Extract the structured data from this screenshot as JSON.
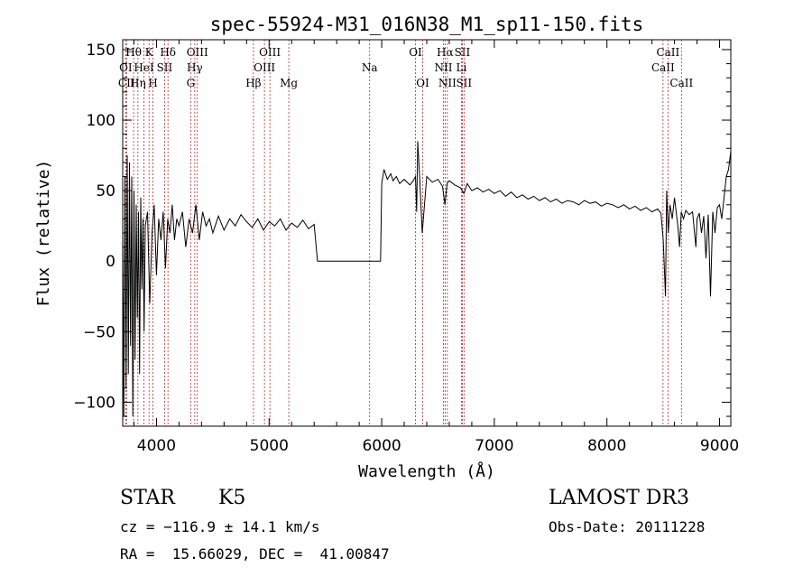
{
  "chart_data": {
    "type": "line",
    "title": "spec-55924-M31_016N38_M1_sp11-150.fits",
    "xlabel": "Wavelength (Å)",
    "ylabel": "Flux (relative)",
    "xlim": [
      3700,
      9100
    ],
    "ylim": [
      -117,
      157
    ],
    "x_ticks": [
      4000,
      5000,
      6000,
      7000,
      8000,
      9000
    ],
    "x_tick_labels": [
      "4000",
      "5000",
      "6000",
      "7000",
      "8000",
      "9000"
    ],
    "y_ticks": [
      -100,
      -50,
      0,
      50,
      100,
      150
    ],
    "y_tick_labels": [
      "−100",
      "−50",
      "0",
      "50",
      "100",
      "150"
    ],
    "grid": false,
    "series": [
      {
        "name": "spectrum",
        "color": "#000000",
        "x": [
          3700,
          3710,
          3720,
          3730,
          3740,
          3750,
          3760,
          3770,
          3780,
          3790,
          3800,
          3810,
          3820,
          3830,
          3840,
          3850,
          3860,
          3870,
          3880,
          3890,
          3900,
          3920,
          3940,
          3960,
          3980,
          4000,
          4020,
          4040,
          4060,
          4080,
          4100,
          4120,
          4140,
          4160,
          4180,
          4200,
          4230,
          4260,
          4290,
          4320,
          4350,
          4380,
          4410,
          4440,
          4470,
          4500,
          4550,
          4600,
          4650,
          4700,
          4750,
          4800,
          4850,
          4900,
          4950,
          5000,
          5050,
          5100,
          5150,
          5200,
          5250,
          5300,
          5350,
          5400,
          5430,
          5440,
          5500,
          5600,
          5700,
          5800,
          5900,
          5950,
          5970,
          5990,
          6000,
          6020,
          6050,
          6080,
          6100,
          6130,
          6160,
          6200,
          6250,
          6280,
          6300,
          6310,
          6320,
          6340,
          6360,
          6400,
          6450,
          6500,
          6540,
          6562,
          6580,
          6600,
          6650,
          6700,
          6730,
          6760,
          6800,
          6850,
          6900,
          6950,
          7000,
          7050,
          7100,
          7150,
          7200,
          7250,
          7300,
          7350,
          7400,
          7450,
          7500,
          7550,
          7600,
          7650,
          7700,
          7750,
          7800,
          7850,
          7900,
          7950,
          8000,
          8050,
          8100,
          8150,
          8200,
          8250,
          8300,
          8350,
          8400,
          8450,
          8480,
          8500,
          8520,
          8530,
          8545,
          8560,
          8580,
          8600,
          8630,
          8645,
          8660,
          8680,
          8700,
          8730,
          8760,
          8790,
          8800,
          8820,
          8840,
          8860,
          8880,
          8900,
          8920,
          8940,
          8960,
          8980,
          9000,
          9020,
          9040,
          9060,
          9080,
          9100
        ],
        "y": [
          20,
          -110,
          60,
          -90,
          75,
          -80,
          70,
          -60,
          60,
          -110,
          50,
          -70,
          40,
          -40,
          35,
          -80,
          45,
          -20,
          30,
          -50,
          25,
          35,
          -30,
          20,
          40,
          -10,
          30,
          15,
          35,
          -5,
          30,
          20,
          40,
          15,
          30,
          25,
          35,
          10,
          30,
          20,
          40,
          15,
          35,
          25,
          30,
          20,
          32,
          22,
          30,
          25,
          33,
          28,
          24,
          30,
          22,
          28,
          25,
          30,
          22,
          27,
          24,
          29,
          23,
          26,
          0,
          0,
          0,
          0,
          0,
          0,
          0,
          0,
          0,
          0,
          55,
          65,
          58,
          62,
          57,
          60,
          55,
          58,
          54,
          57,
          60,
          35,
          85,
          55,
          20,
          60,
          56,
          58,
          53,
          40,
          55,
          57,
          54,
          52,
          48,
          55,
          50,
          52,
          49,
          51,
          48,
          50,
          46,
          49,
          45,
          47,
          44,
          46,
          43,
          45,
          42,
          44,
          41,
          43,
          42,
          40,
          43,
          41,
          42,
          39,
          41,
          40,
          38,
          40,
          37,
          39,
          36,
          38,
          35,
          37,
          34,
          15,
          -25,
          50,
          20,
          40,
          30,
          45,
          25,
          10,
          35,
          30,
          36,
          33,
          35,
          10,
          30,
          34,
          20,
          32,
          2,
          33,
          -25,
          35,
          20,
          38,
          40,
          30,
          45,
          60,
          65,
          78
        ]
      }
    ],
    "line_markers": [
      {
        "label": "Hθ",
        "wavelength": 3797,
        "row": 1
      },
      {
        "label": "OI",
        "wavelength": 3727,
        "row": 2
      },
      {
        "label": "CII",
        "wavelength": 3734,
        "row": 3
      },
      {
        "label": "K",
        "wavelength": 3934,
        "row": 1
      },
      {
        "label": "HeI",
        "wavelength": 3889,
        "row": 2
      },
      {
        "label": "Hη",
        "wavelength": 3835,
        "row": 3
      },
      {
        "label": "H",
        "wavelength": 3969,
        "row": 3
      },
      {
        "label": "Hδ",
        "wavelength": 4102,
        "row": 1
      },
      {
        "label": "SII",
        "wavelength": 4072,
        "row": 2
      },
      {
        "label": "OIII",
        "wavelength": 4363,
        "row": 1
      },
      {
        "label": "Hγ",
        "wavelength": 4340,
        "row": 2
      },
      {
        "label": "G",
        "wavelength": 4304,
        "row": 3
      },
      {
        "label": "OIII",
        "wavelength": 5007,
        "row": 1
      },
      {
        "label": "OIII",
        "wavelength": 4959,
        "row": 2
      },
      {
        "label": "Hβ",
        "wavelength": 4861,
        "row": 3
      },
      {
        "label": "Mg",
        "wavelength": 5175,
        "row": 3
      },
      {
        "label": "Na",
        "wavelength": 5893,
        "row": 2
      },
      {
        "label": "OI",
        "wavelength": 6300,
        "row": 1
      },
      {
        "label": "OI",
        "wavelength": 6364,
        "row": 3
      },
      {
        "label": "Hα",
        "wavelength": 6563,
        "row": 1
      },
      {
        "label": "SII",
        "wavelength": 6716,
        "row": 1
      },
      {
        "label": "NII",
        "wavelength": 6548,
        "row": 2
      },
      {
        "label": "Li",
        "wavelength": 6708,
        "row": 2
      },
      {
        "label": "NII",
        "wavelength": 6583,
        "row": 3
      },
      {
        "label": "SII",
        "wavelength": 6731,
        "row": 3
      },
      {
        "label": "CaII",
        "wavelength": 8542,
        "row": 1
      },
      {
        "label": "CaII",
        "wavelength": 8498,
        "row": 2
      },
      {
        "label": "CaII",
        "wavelength": 8662,
        "row": 3
      }
    ],
    "marker_color": "#b03030"
  },
  "info": {
    "object_class": "STAR",
    "subclass": "K5",
    "survey": "LAMOST DR3",
    "redshift": "cz = −116.9 ± 14.1 km/s",
    "obs_date": "Obs-Date: 20111228",
    "coords": "RA =  15.66029, DEC =  41.00847"
  }
}
